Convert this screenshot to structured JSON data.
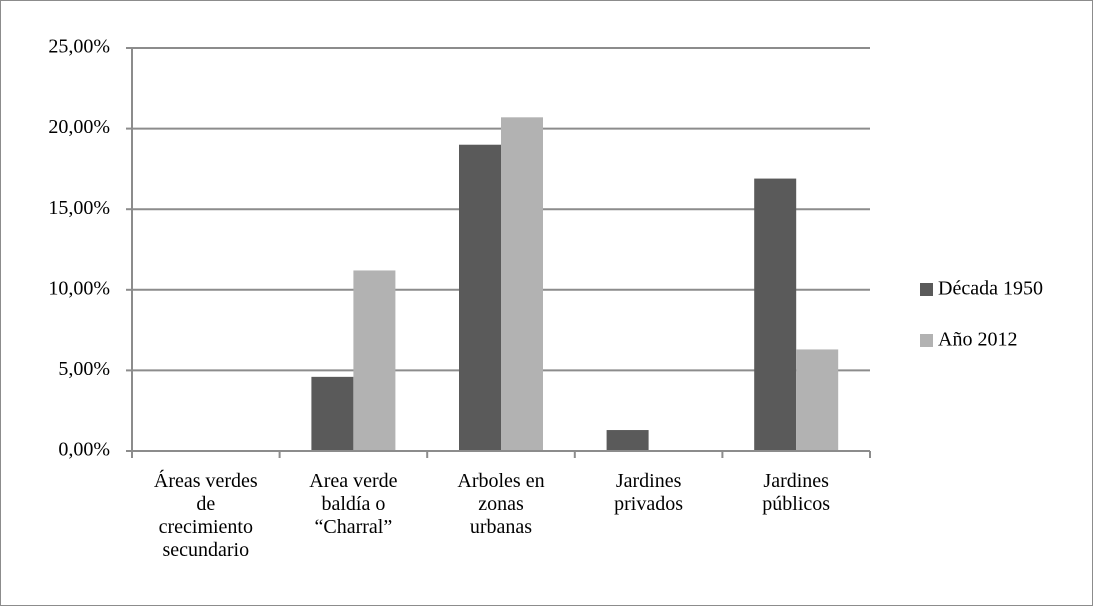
{
  "chart_data": {
    "type": "bar",
    "categories": [
      "Áreas verdes de crecimiento secundario",
      "Area verde baldía o “Charral”",
      "Arboles en zonas urbanas",
      "Jardines privados",
      "Jardines públicos"
    ],
    "series": [
      {
        "name": "Década 1950",
        "color": "#5a5a5a",
        "values": [
          0,
          4.6,
          19.0,
          1.3,
          16.9
        ]
      },
      {
        "name": "Año 2012",
        "color": "#b2b2b2",
        "values": [
          0,
          11.2,
          20.7,
          0,
          6.3
        ]
      }
    ],
    "ylim": [
      0,
      25
    ],
    "yticks": [
      {
        "value": 0,
        "label": "0,00%"
      },
      {
        "value": 5,
        "label": "5,00%"
      },
      {
        "value": 10,
        "label": "10,00%"
      },
      {
        "value": 15,
        "label": "15,00%"
      },
      {
        "value": 20,
        "label": "20,00%"
      },
      {
        "value": 25,
        "label": "25,00%"
      }
    ],
    "grid": true,
    "legend": "right"
  }
}
